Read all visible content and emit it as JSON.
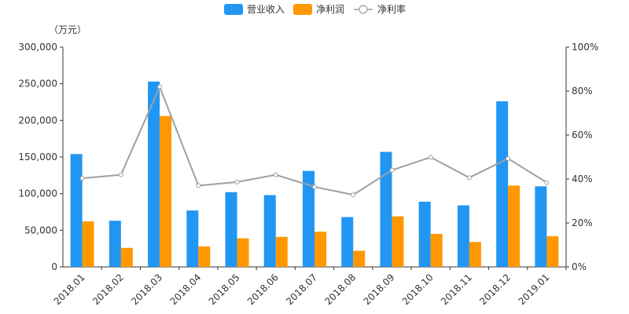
{
  "chart_data": {
    "type": "bar",
    "unit_label": "（万元）",
    "categories": [
      "2018.01",
      "2018.02",
      "2018.03",
      "2018.04",
      "2018.05",
      "2018.06",
      "2018.07",
      "2018.08",
      "2018.09",
      "2018.10",
      "2018.11",
      "2018.12",
      "2019.01"
    ],
    "series": [
      {
        "name": "营业收入",
        "type": "bar",
        "axis": "left",
        "color": "#2196F3",
        "values": [
          154000,
          63000,
          253000,
          77000,
          102000,
          98000,
          131000,
          68000,
          157000,
          89000,
          84000,
          226000,
          110000
        ]
      },
      {
        "name": "净利润",
        "type": "bar",
        "axis": "left",
        "color": "#FF9800",
        "values": [
          62000,
          26000,
          206000,
          28000,
          39000,
          41000,
          48000,
          22000,
          69000,
          45000,
          34000,
          111000,
          42000
        ]
      },
      {
        "name": "净利率",
        "type": "line",
        "axis": "right",
        "color": "#A0A0A0",
        "values": [
          40.3,
          41.9,
          81.9,
          37.0,
          38.6,
          41.9,
          36.4,
          32.8,
          44.0,
          49.9,
          40.6,
          49.3,
          38.4
        ]
      }
    ],
    "y_left": {
      "min": 0,
      "max": 300000,
      "ticks": [
        "0",
        "50,000",
        "100,000",
        "150,000",
        "200,000",
        "250,000",
        "300,000"
      ]
    },
    "y_right": {
      "min": 0,
      "max": 100,
      "ticks": [
        "0%",
        "20%",
        "40%",
        "60%",
        "80%",
        "100%"
      ]
    },
    "legend_position": "top-center",
    "grid": false
  }
}
